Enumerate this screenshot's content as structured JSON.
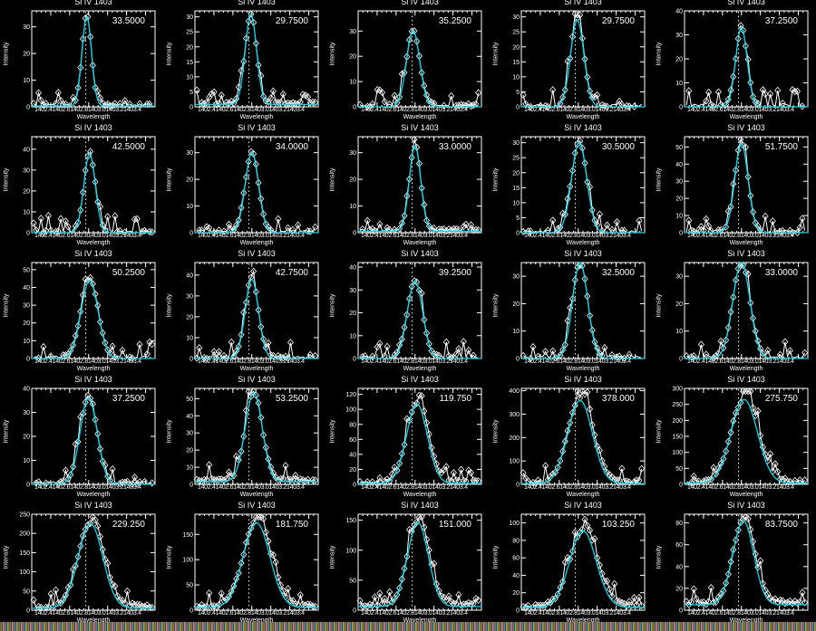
{
  "chart_data": {
    "type": "line",
    "layout": {
      "rows": 5,
      "cols": 5
    },
    "common": {
      "title": "Si IV 1403",
      "xlabel": "Wavelength",
      "ylabel": "Intensity",
      "xticks": [
        "1402.4",
        "1402.6",
        "1402.8",
        "1403.0",
        "1403.2",
        "1403.4"
      ],
      "xtick_text": "1402.41402.61402.81403.01403.21403.4",
      "xlim": [
        1402.2,
        1403.5
      ],
      "rest_wavelength_marker": 1402.77,
      "series_styles": {
        "observed": {
          "color": "#ffffff",
          "marker": "diamond"
        },
        "fit": {
          "color": "#00d8e8"
        }
      }
    },
    "panels": [
      {
        "value": "33.5000",
        "ymax": 36,
        "yticks": [
          0,
          10,
          20,
          30
        ],
        "peak": 33.5,
        "center": 1402.78,
        "width": 0.05,
        "bg": 0.3
      },
      {
        "value": "29.7500",
        "ymax": 32,
        "yticks": [
          0,
          5,
          10,
          15,
          20,
          25,
          30
        ],
        "peak": 30,
        "center": 1402.79,
        "width": 0.06,
        "bg": 0.8
      },
      {
        "value": "35.2500",
        "ymax": 38,
        "yticks": [
          0,
          10,
          20,
          30
        ],
        "peak": 30,
        "center": 1402.78,
        "width": 0.07,
        "bg": 0
      },
      {
        "value": "29.7500",
        "ymax": 32,
        "yticks": [
          0,
          5,
          10,
          15,
          20,
          25,
          30
        ],
        "peak": 29,
        "center": 1402.79,
        "width": 0.07,
        "bg": 0
      },
      {
        "value": "37.2500",
        "ymax": 40,
        "yticks": [
          0,
          10,
          20,
          30,
          40
        ],
        "peak": 33,
        "center": 1402.8,
        "width": 0.06,
        "bg": 0
      },
      {
        "value": "42.5000",
        "ymax": 46,
        "yticks": [
          0,
          10,
          20,
          30,
          40
        ],
        "peak": 38,
        "center": 1402.81,
        "width": 0.06,
        "bg": 0
      },
      {
        "value": "34.0000",
        "ymax": 36,
        "yticks": [
          0,
          10,
          20,
          30
        ],
        "peak": 30,
        "center": 1402.8,
        "width": 0.07,
        "bg": 0
      },
      {
        "value": "33.0000",
        "ymax": 36,
        "yticks": [
          0,
          10,
          20,
          30
        ],
        "peak": 32,
        "center": 1402.8,
        "width": 0.06,
        "bg": 0.5
      },
      {
        "value": "30.5000",
        "ymax": 32,
        "yticks": [
          0,
          5,
          10,
          15,
          20,
          25,
          30
        ],
        "peak": 30,
        "center": 1402.81,
        "width": 0.08,
        "bg": 0
      },
      {
        "value": "51.7500",
        "ymax": 56,
        "yticks": [
          0,
          10,
          20,
          30,
          40,
          50
        ],
        "peak": 52,
        "center": 1402.8,
        "width": 0.07,
        "bg": 0
      },
      {
        "value": "50.2500",
        "ymax": 54,
        "yticks": [
          0,
          10,
          20,
          30,
          40,
          50
        ],
        "peak": 44,
        "center": 1402.81,
        "width": 0.09,
        "bg": 0
      },
      {
        "value": "42.7500",
        "ymax": 46,
        "yticks": [
          0,
          10,
          20,
          30,
          40
        ],
        "peak": 38,
        "center": 1402.8,
        "width": 0.07,
        "bg": 0
      },
      {
        "value": "39.2500",
        "ymax": 42,
        "yticks": [
          0,
          10,
          20,
          30,
          40
        ],
        "peak": 34,
        "center": 1402.8,
        "width": 0.08,
        "bg": 0
      },
      {
        "value": "32.5000",
        "ymax": 35,
        "yticks": [
          0,
          10,
          20,
          30
        ],
        "peak": 35,
        "center": 1402.82,
        "width": 0.08,
        "bg": 0
      },
      {
        "value": "33.0000",
        "ymax": 35,
        "yticks": [
          0,
          10,
          20,
          30
        ],
        "peak": 35,
        "center": 1402.8,
        "width": 0.09,
        "bg": 0
      },
      {
        "value": "37.2500",
        "ymax": 40,
        "yticks": [
          0,
          10,
          20,
          30,
          40
        ],
        "peak": 36,
        "center": 1402.8,
        "width": 0.09,
        "bg": 0
      },
      {
        "value": "53.2500",
        "ymax": 56,
        "yticks": [
          0,
          10,
          20,
          30,
          40,
          50
        ],
        "peak": 52,
        "center": 1402.82,
        "width": 0.09,
        "bg": 1.5
      },
      {
        "value": "119.750",
        "ymax": 128,
        "yticks": [
          0,
          20,
          40,
          60,
          80,
          100,
          120
        ],
        "peak": 106,
        "center": 1402.82,
        "width": 0.11,
        "bg": 1
      },
      {
        "value": "378.000",
        "ymax": 410,
        "yticks": [
          0,
          100,
          200,
          300,
          400
        ],
        "peak": 355,
        "center": 1402.82,
        "width": 0.13,
        "bg": 3
      },
      {
        "value": "275.750",
        "ymax": 300,
        "yticks": [
          0,
          50,
          100,
          150,
          200,
          250,
          300
        ],
        "peak": 262,
        "center": 1402.83,
        "width": 0.14,
        "bg": 3
      },
      {
        "value": "229.250",
        "ymax": 250,
        "yticks": [
          0,
          50,
          100,
          150,
          200,
          250
        ],
        "peak": 220,
        "center": 1402.82,
        "width": 0.13,
        "bg": 5
      },
      {
        "value": "181.750",
        "ymax": 190,
        "yticks": [
          0,
          50,
          100,
          150
        ],
        "peak": 168,
        "center": 1402.85,
        "width": 0.14,
        "bg": 5
      },
      {
        "value": "151.000",
        "ymax": 160,
        "yticks": [
          0,
          50,
          100,
          150
        ],
        "peak": 140,
        "center": 1402.83,
        "width": 0.11,
        "bg": 6
      },
      {
        "value": "103.250",
        "ymax": 110,
        "yticks": [
          0,
          20,
          40,
          60,
          80,
          100
        ],
        "peak": 88,
        "center": 1402.85,
        "width": 0.14,
        "bg": 3
      },
      {
        "value": "83.7500",
        "ymax": 88,
        "yticks": [
          0,
          20,
          40,
          60,
          80
        ],
        "peak": 77,
        "center": 1402.82,
        "width": 0.11,
        "bg": 5
      }
    ]
  }
}
